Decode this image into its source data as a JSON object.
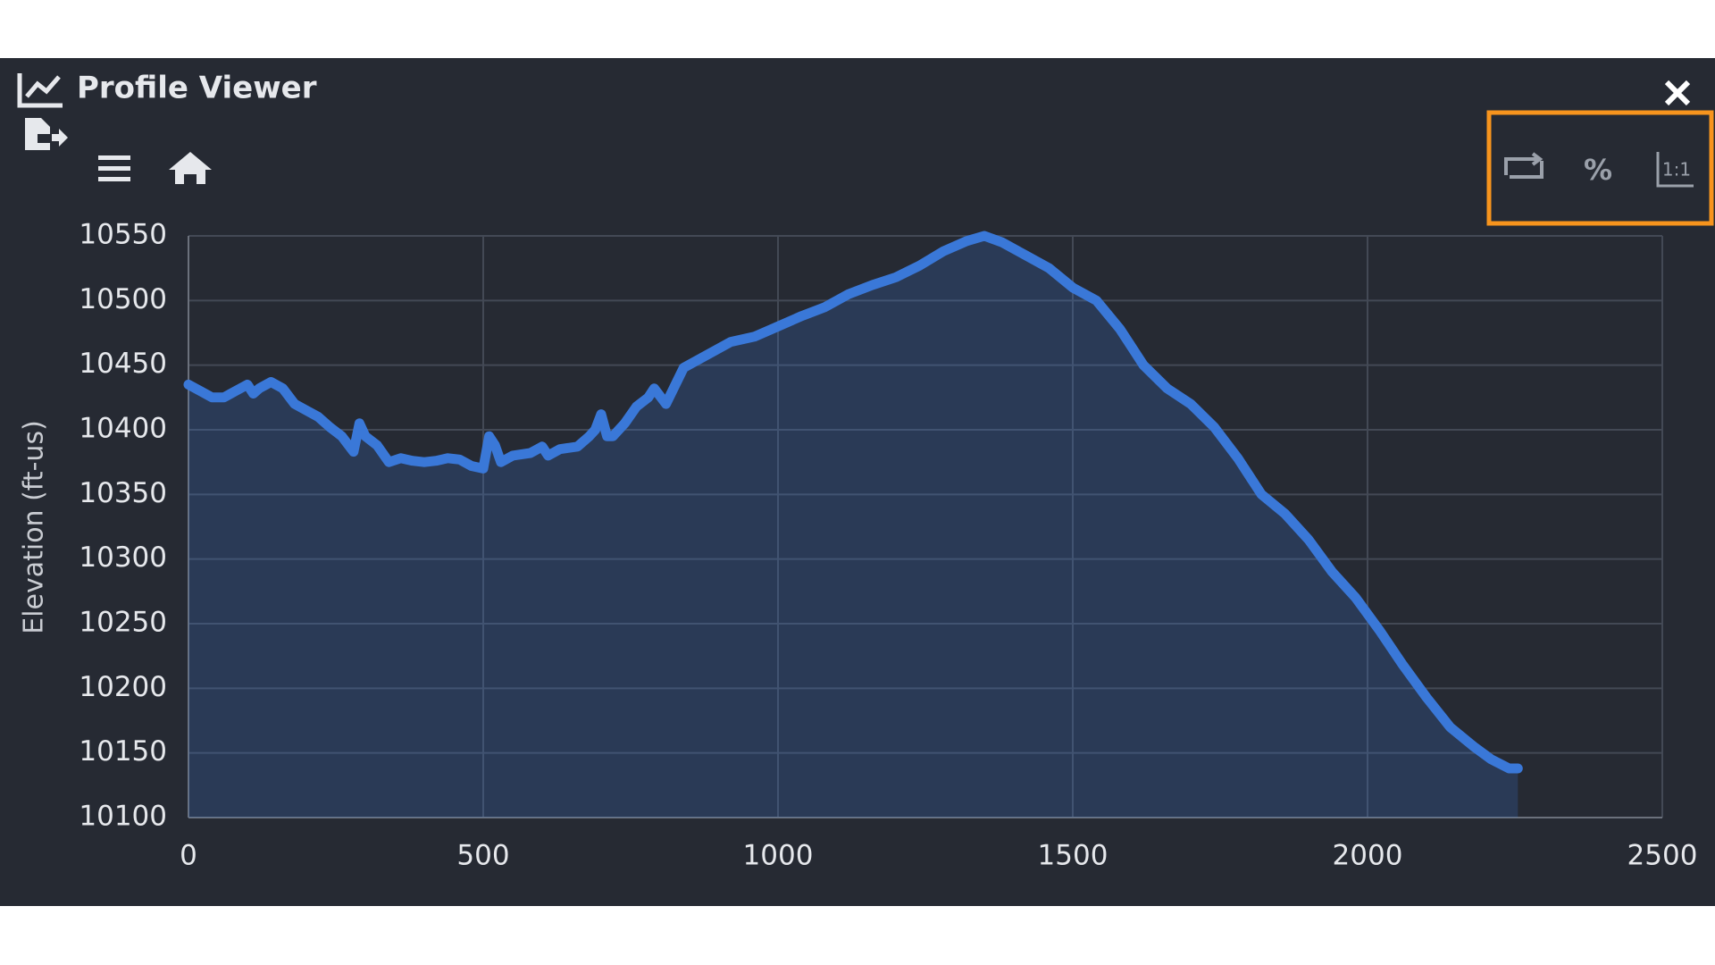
{
  "window": {
    "title": "Profile Viewer"
  },
  "chart_data": {
    "type": "area",
    "y_label": "Elevation (ft-us)",
    "x": [
      0,
      20,
      40,
      60,
      80,
      100,
      110,
      120,
      140,
      160,
      180,
      200,
      220,
      240,
      260,
      280,
      290,
      300,
      320,
      340,
      360,
      380,
      400,
      420,
      440,
      460,
      480,
      500,
      510,
      520,
      530,
      550,
      580,
      600,
      610,
      630,
      660,
      680,
      690,
      700,
      710,
      720,
      740,
      760,
      780,
      790,
      810,
      840,
      880,
      920,
      960,
      1000,
      1040,
      1080,
      1120,
      1160,
      1200,
      1240,
      1280,
      1320,
      1350,
      1380,
      1420,
      1460,
      1500,
      1540,
      1580,
      1620,
      1660,
      1700,
      1740,
      1780,
      1820,
      1860,
      1900,
      1940,
      1980,
      2020,
      2060,
      2100,
      2140,
      2180,
      2210,
      2240,
      2255
    ],
    "values": [
      10435,
      10430,
      10425,
      10425,
      10430,
      10435,
      10428,
      10432,
      10437,
      10432,
      10420,
      10415,
      10410,
      10402,
      10395,
      10383,
      10405,
      10395,
      10388,
      10375,
      10378,
      10376,
      10375,
      10376,
      10378,
      10377,
      10372,
      10370,
      10395,
      10388,
      10375,
      10380,
      10382,
      10387,
      10380,
      10385,
      10387,
      10395,
      10400,
      10412,
      10395,
      10395,
      10405,
      10418,
      10425,
      10432,
      10420,
      10448,
      10458,
      10468,
      10472,
      10480,
      10488,
      10495,
      10505,
      10512,
      10518,
      10527,
      10538,
      10546,
      10550,
      10545,
      10535,
      10525,
      10510,
      10500,
      10478,
      10450,
      10432,
      10420,
      10402,
      10378,
      10350,
      10335,
      10315,
      10290,
      10270,
      10245,
      10218,
      10193,
      10170,
      10155,
      10145,
      10138,
      10138
    ],
    "color": "#3a78d8",
    "xlim": [
      0,
      2500
    ],
    "xticks": [
      0,
      500,
      1000,
      1500,
      2000,
      2500
    ],
    "ylim": [
      10100,
      10550
    ],
    "yticks": [
      10100,
      10150,
      10200,
      10250,
      10300,
      10350,
      10400,
      10450,
      10500,
      10550
    ],
    "grid": true
  }
}
